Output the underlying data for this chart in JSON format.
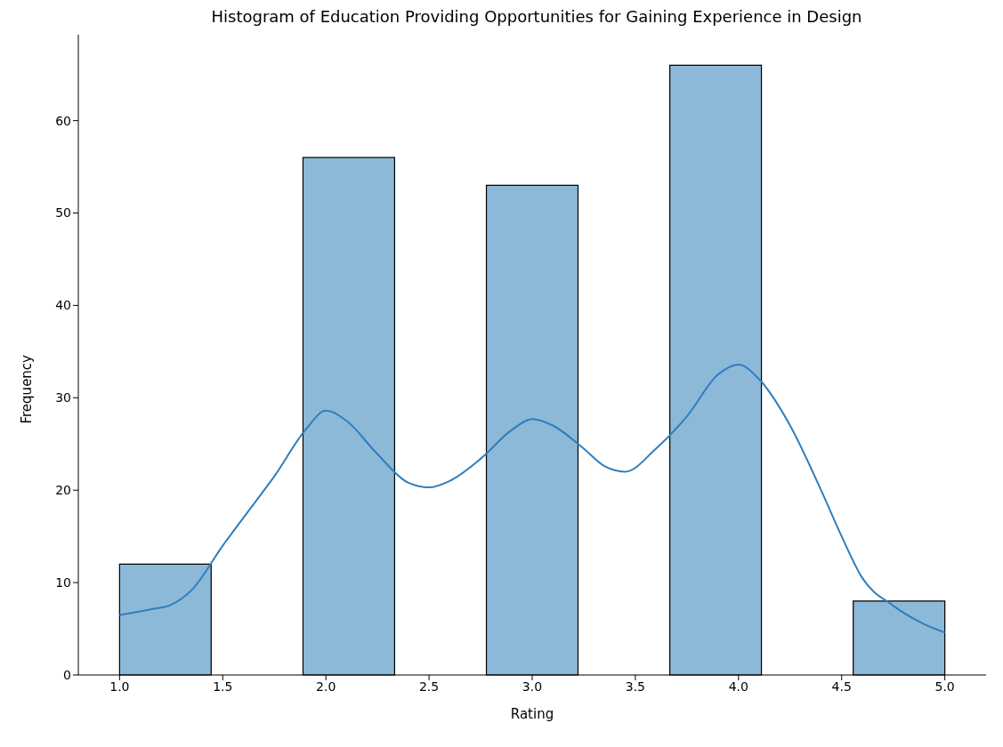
{
  "chart_data": {
    "type": "histogram",
    "title": "Histogram of Education Providing Opportunities for Gaining Experience in Design",
    "xlabel": "Rating",
    "ylabel": "Frequency",
    "bins": [
      1,
      1.444,
      1.889,
      2.333,
      2.778,
      3.222,
      3.667,
      4.111,
      4.556,
      5
    ],
    "values": [
      12,
      0,
      56,
      0,
      53,
      0,
      66,
      0,
      8
    ],
    "color": "#8db9d9",
    "series": [
      {
        "type": "line",
        "color": "#2f7ebc",
        "x": [
          1,
          1.15,
          1.25,
          1.35,
          1.5,
          1.65,
          1.75,
          1.9,
          2.0,
          2.1,
          2.25,
          2.4,
          2.5,
          2.6,
          2.75,
          2.9,
          3.0,
          3.1,
          3.25,
          3.35,
          3.45,
          3.6,
          3.75,
          3.9,
          4.0,
          4.1,
          4.25,
          4.4,
          4.5,
          4.6,
          4.75,
          4.9,
          5.0
        ],
        "values": [
          6.5,
          7.1,
          7.6,
          9.2,
          14,
          18.5,
          21.5,
          26.5,
          28.6,
          27.5,
          23.9,
          20.8,
          20.3,
          21,
          23.4,
          26.5,
          27.7,
          27,
          24.5,
          22.6,
          22,
          24.5,
          28,
          32.5,
          33.6,
          32,
          27,
          20,
          15,
          10.5,
          7.5,
          5.5,
          4.6
        ]
      }
    ],
    "xlim": [
      0.8,
      5.2
    ],
    "ylim": [
      0,
      69.3
    ],
    "xticks": [
      {
        "value": 1,
        "label": "1.0"
      },
      {
        "value": 1.5,
        "label": "1.5"
      },
      {
        "value": 2,
        "label": "2.0"
      },
      {
        "value": 2.5,
        "label": "2.5"
      },
      {
        "value": 3,
        "label": "3.0"
      },
      {
        "value": 3.5,
        "label": "3.5"
      },
      {
        "value": 4,
        "label": "4.0"
      },
      {
        "value": 4.5,
        "label": "4.5"
      },
      {
        "value": 5,
        "label": "5.0"
      }
    ],
    "yticks": [
      0,
      10,
      20,
      30,
      40,
      50,
      60
    ],
    "grid": false
  }
}
